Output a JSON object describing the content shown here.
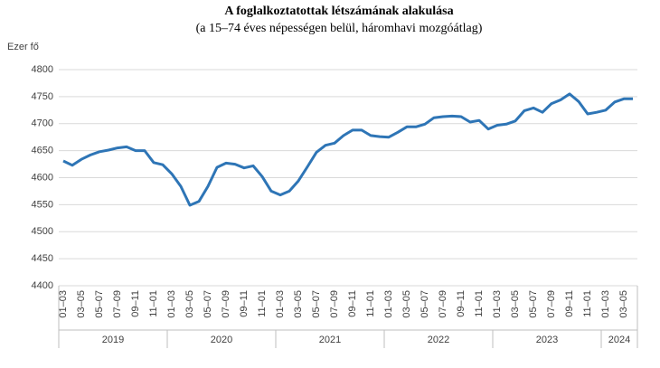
{
  "chart_data": {
    "type": "line",
    "title": "A foglalkoztatottak létszámának alakulása",
    "subtitle": "(a 15–74 éves népességen belül, háromhavi mozgóátlag)",
    "y_label": "Ezer fő",
    "categories": [
      "01–03",
      null,
      "03–05",
      null,
      "05–07",
      null,
      "07–09",
      null,
      "09–11",
      null,
      "11–01",
      null,
      "01–03",
      null,
      "03–05",
      null,
      "05–07",
      null,
      "07–09",
      null,
      "09–11",
      null,
      "11–01",
      null,
      "01–03",
      null,
      "03–05",
      null,
      "05–07",
      null,
      "07–09",
      null,
      "09–11",
      null,
      "11–01",
      null,
      "01–03",
      null,
      "03–05",
      null,
      "05–07",
      null,
      "07–09",
      null,
      "09–11",
      null,
      "11–01",
      null,
      "01–03",
      null,
      "03–05",
      null,
      "05–07",
      null,
      "07–09",
      null,
      "09–11",
      null,
      "11–01",
      null,
      "01–03",
      null,
      "03–05",
      null
    ],
    "years": [
      "2019",
      "2020",
      "2021",
      "2022",
      "2023",
      "2024"
    ],
    "series": [
      {
        "name": "Foglalkoztatottak",
        "color": "#2e75b6",
        "values": [
          4631,
          4623,
          4634,
          4642,
          4648,
          4651,
          4655,
          4657,
          4650,
          4650,
          4628,
          4624,
          4607,
          4584,
          4549,
          4556,
          4584,
          4619,
          4627,
          4625,
          4618,
          4622,
          4602,
          4575,
          4568,
          4575,
          4594,
          4620,
          4647,
          4660,
          4664,
          4678,
          4688,
          4688,
          4678,
          4676,
          4675,
          4684,
          4694,
          4694,
          4699,
          4711,
          4713,
          4714,
          4713,
          4703,
          4706,
          4690,
          4697,
          4699,
          4705,
          4724,
          4729,
          4721,
          4737,
          4744,
          4755,
          4741,
          4718,
          4721,
          4725,
          4740,
          4746,
          4746
        ]
      }
    ],
    "ylim": [
      4400,
      4800
    ],
    "yticks": [
      4400,
      4450,
      4500,
      4550,
      4600,
      4650,
      4700,
      4750,
      4800
    ],
    "grid": true
  }
}
